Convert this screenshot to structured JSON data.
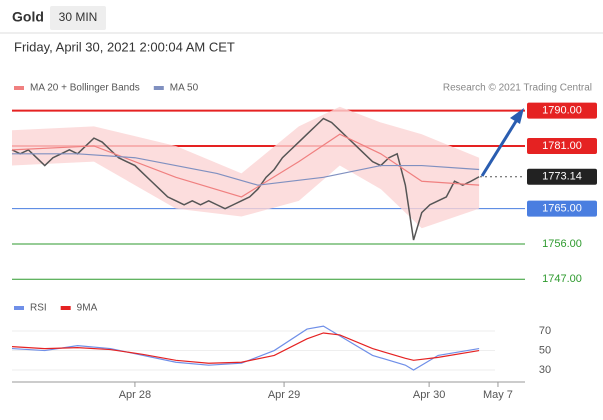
{
  "header": {
    "symbol": "Gold",
    "interval": "30 MIN",
    "timestamp": "Friday, April 30, 2021 2:00:04 AM CET"
  },
  "chart_data": [
    {
      "type": "line",
      "source": "Research © 2021 Trading Central",
      "xlim": [
        0,
        62.6
      ],
      "ylim": [
        1744,
        1794
      ],
      "levels": [
        {
          "value": 1790,
          "label": "1790.00",
          "color": "#e52222"
        },
        {
          "value": 1781,
          "label": "1781.00",
          "color": "#e52222"
        },
        {
          "value": 1773.14,
          "label": "1773.14",
          "color": "#222222"
        },
        {
          "value": 1765,
          "label": "1765.00",
          "color": "#4a7ee0"
        },
        {
          "value": 1756,
          "label": "1756.00",
          "color": "#2e9a2e"
        },
        {
          "value": 1747,
          "label": "1747.00",
          "color": "#2e9a2e"
        }
      ],
      "series": [
        {
          "color": "#555555",
          "x": [
            0,
            1,
            2,
            3,
            4,
            5,
            6,
            7,
            8,
            9,
            10,
            11,
            12,
            13,
            14,
            15,
            16,
            17,
            18,
            19,
            20,
            21,
            22,
            23,
            24,
            25,
            26,
            27,
            28,
            29,
            30,
            31,
            32,
            33,
            34,
            35,
            36,
            37,
            38,
            39,
            40,
            41,
            42,
            43,
            44,
            45,
            46,
            47,
            48,
            49,
            50,
            51,
            52,
            53,
            54,
            55,
            56,
            57
          ],
          "values": [
            1780,
            1779,
            1780,
            1778,
            1776,
            1778,
            1779,
            1780,
            1779,
            1781,
            1783,
            1782,
            1780,
            1778,
            1777,
            1776,
            1774,
            1772,
            1770,
            1768,
            1767,
            1766,
            1767,
            1766,
            1767,
            1766,
            1765,
            1766,
            1767,
            1768,
            1770,
            1773,
            1775,
            1778,
            1780,
            1782,
            1784,
            1786,
            1788,
            1787,
            1785,
            1783,
            1781,
            1779,
            1777,
            1776,
            1778,
            1779,
            1771,
            1757,
            1764,
            1766,
            1767,
            1768,
            1772,
            1771,
            1772,
            1773.14
          ]
        },
        {
          "name": "MA 20 + Bollinger Bands",
          "color": "#f08080",
          "band_color": "#fbd5d5",
          "x": [
            0,
            10,
            20,
            28,
            35,
            40,
            45,
            50,
            57
          ],
          "values": [
            1780,
            1781,
            1773,
            1768,
            1777,
            1784,
            1779,
            1772,
            1771
          ],
          "upper": [
            1785,
            1786,
            1781,
            1774,
            1786,
            1791,
            1787,
            1784,
            1778
          ],
          "lower": [
            1776,
            1777,
            1765,
            1763,
            1767,
            1776,
            1770,
            1760,
            1765
          ]
        },
        {
          "name": "MA 50",
          "color": "#8090c0",
          "x": [
            0,
            8,
            15,
            25,
            30,
            38,
            45,
            50,
            57
          ],
          "values": [
            1779,
            1779,
            1778,
            1774,
            1771,
            1773,
            1776,
            1776,
            1775
          ]
        }
      ]
    },
    {
      "type": "line",
      "xlim": [
        0,
        62.6
      ],
      "ylim": [
        20,
        85
      ],
      "yticks": [
        30,
        50,
        70
      ],
      "xticks": [
        {
          "value": 15,
          "label": "Apr 28"
        },
        {
          "value": 33.2,
          "label": "Apr 29"
        },
        {
          "value": 50.9,
          "label": "Apr 30"
        },
        {
          "value": 59.3,
          "label": "May 7"
        }
      ],
      "series": [
        {
          "name": "RSI",
          "color": "#6f8fe8",
          "x": [
            0,
            4,
            8,
            12,
            16,
            20,
            24,
            28,
            32,
            36,
            38,
            40,
            44,
            48,
            49,
            52,
            57
          ],
          "values": [
            52,
            50,
            55,
            52,
            45,
            38,
            35,
            37,
            50,
            72,
            75,
            65,
            45,
            35,
            30,
            45,
            52
          ]
        },
        {
          "name": "9MA",
          "color": "#e52222",
          "x": [
            0,
            4,
            8,
            12,
            16,
            20,
            24,
            28,
            32,
            36,
            38,
            40,
            44,
            48,
            49,
            52,
            57
          ],
          "values": [
            54,
            52,
            53,
            51,
            46,
            40,
            37,
            38,
            45,
            62,
            68,
            66,
            52,
            42,
            40,
            43,
            50
          ]
        }
      ]
    }
  ]
}
